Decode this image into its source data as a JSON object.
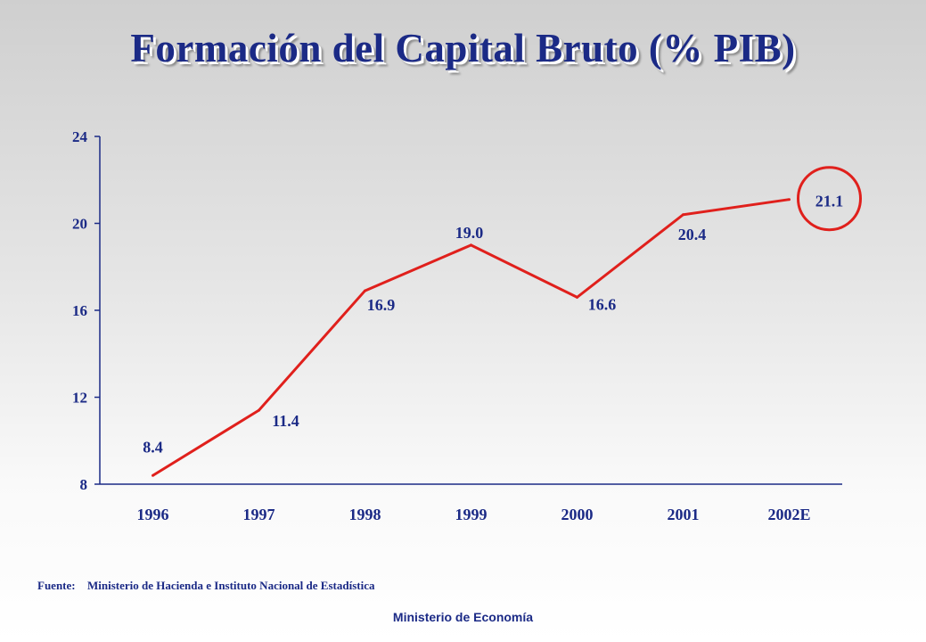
{
  "title": "Formación del Capital Bruto (% PIB)",
  "chart_data": {
    "type": "line",
    "title": "Formación del Capital Bruto (% PIB)",
    "categories": [
      "1996",
      "1997",
      "1998",
      "1999",
      "2000",
      "2001",
      "2002E"
    ],
    "series": [
      {
        "values": [
          8.4,
          11.4,
          16.9,
          19.0,
          16.6,
          20.4,
          21.1
        ],
        "labels": [
          "8.4",
          "11.4",
          "16.9",
          "19.0",
          "16.6",
          "20.4",
          "21.1"
        ]
      }
    ],
    "ylim": [
      8,
      24
    ],
    "yticks": [
      8,
      12,
      16,
      20,
      24
    ],
    "xlabel": "",
    "ylabel": "",
    "grid": false,
    "highlight_category": "2002E",
    "colors": {
      "line": "#e0201c",
      "text": "#1b2a86",
      "axis": "#1b2a86",
      "highlight_circle": "#e0201c"
    }
  },
  "source": {
    "label": "Fuente:",
    "text": "Ministerio  de Hacienda e Instituto Nacional de Estadística"
  },
  "footer": "Ministerio de Economía"
}
